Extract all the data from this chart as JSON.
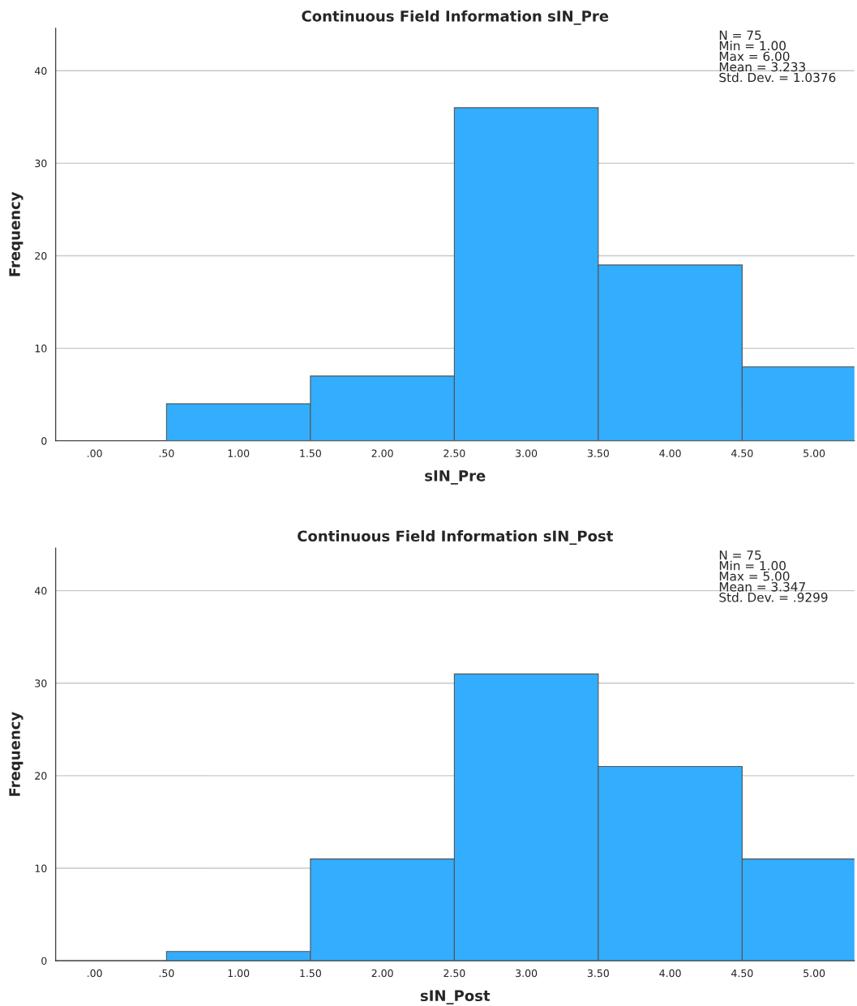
{
  "chart_data": [
    {
      "type": "histogram",
      "title": "Continuous Field Information sIN_Pre",
      "xlabel": "sIN_Pre",
      "ylabel": "Frequency",
      "bins": [
        0.5,
        1.5,
        2.5,
        3.5,
        4.5,
        5.5
      ],
      "values": [
        4,
        7,
        36,
        19,
        8
      ],
      "color": "#33adfd",
      "xlim": [
        -0.27,
        5.28
      ],
      "ylim": [
        0,
        44.6
      ],
      "xticks": [
        {
          "value": 0,
          "label": ".00"
        },
        {
          "value": 0.5,
          "label": ".50"
        },
        {
          "value": 1,
          "label": "1.00"
        },
        {
          "value": 1.5,
          "label": "1.50"
        },
        {
          "value": 2,
          "label": "2.00"
        },
        {
          "value": 2.5,
          "label": "2.50"
        },
        {
          "value": 3,
          "label": "3.00"
        },
        {
          "value": 3.5,
          "label": "3.50"
        },
        {
          "value": 4,
          "label": "4.00"
        },
        {
          "value": 4.5,
          "label": "4.50"
        },
        {
          "value": 5,
          "label": "5.00"
        }
      ],
      "yticks": [
        0,
        10,
        20,
        30,
        40
      ],
      "grid": "y",
      "annotations": [
        "N = 75\nMin = 1.00\nMax = 6.00\nMean = 3.233\nStd. Dev. = 1.0376"
      ]
    },
    {
      "type": "histogram",
      "title": "Continuous Field Information sIN_Post",
      "xlabel": "sIN_Post",
      "ylabel": "Frequency",
      "bins": [
        0.5,
        1.5,
        2.5,
        3.5,
        4.5,
        5.5
      ],
      "values": [
        1,
        11,
        31,
        21,
        11
      ],
      "color": "#33adfd",
      "xlim": [
        -0.27,
        5.28
      ],
      "ylim": [
        0,
        44.6
      ],
      "xticks": [
        {
          "value": 0,
          "label": ".00"
        },
        {
          "value": 0.5,
          "label": ".50"
        },
        {
          "value": 1,
          "label": "1.00"
        },
        {
          "value": 1.5,
          "label": "1.50"
        },
        {
          "value": 2,
          "label": "2.00"
        },
        {
          "value": 2.5,
          "label": "2.50"
        },
        {
          "value": 3,
          "label": "3.00"
        },
        {
          "value": 3.5,
          "label": "3.50"
        },
        {
          "value": 4,
          "label": "4.00"
        },
        {
          "value": 4.5,
          "label": "4.50"
        },
        {
          "value": 5,
          "label": "5.00"
        }
      ],
      "yticks": [
        0,
        10,
        20,
        30,
        40
      ],
      "grid": "y",
      "annotations": [
        "N = 75\nMin = 1.00\nMax = 5.00\nMean = 3.347\nStd. Dev. = .9299"
      ]
    }
  ]
}
